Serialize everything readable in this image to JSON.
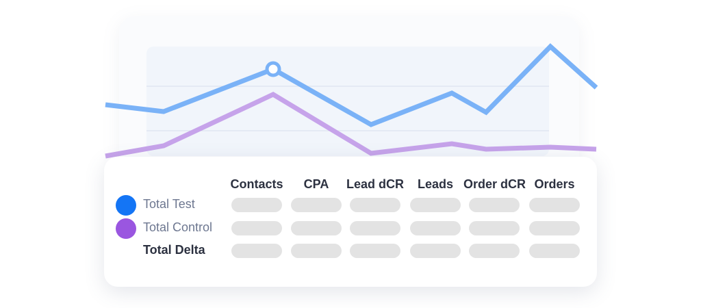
{
  "chart_data": {
    "type": "line",
    "series": [
      {
        "name": "Total Test",
        "color": "#7ab2f7",
        "points": [
          [
            0,
            153
          ],
          [
            1,
            163
          ],
          [
            2,
            101
          ],
          [
            3,
            182
          ],
          [
            4,
            136
          ],
          [
            5,
            164
          ],
          [
            6,
            68
          ],
          [
            7,
            128
          ]
        ],
        "highlight_index": 2
      },
      {
        "name": "Total Control",
        "color": "#c6a3ea",
        "points": [
          [
            0,
            228
          ],
          [
            1,
            213
          ],
          [
            2,
            138
          ],
          [
            3,
            224
          ],
          [
            4,
            210
          ],
          [
            5,
            218
          ],
          [
            6,
            215
          ],
          [
            7,
            218
          ]
        ]
      }
    ],
    "grid": true
  },
  "table": {
    "columns": [
      "Contacts",
      "CPA",
      "Lead dCR",
      "Leads",
      "Order dCR",
      "Orders"
    ],
    "rows": [
      {
        "label": "Total Test",
        "dot_color": "#1475f5",
        "style": "muted"
      },
      {
        "label": "Total Control",
        "dot_color": "#9a56e0",
        "style": "muted"
      },
      {
        "label": "Total Delta",
        "dot_color": null,
        "style": "strong"
      }
    ],
    "placeholder_color": "#e3e3e3"
  }
}
